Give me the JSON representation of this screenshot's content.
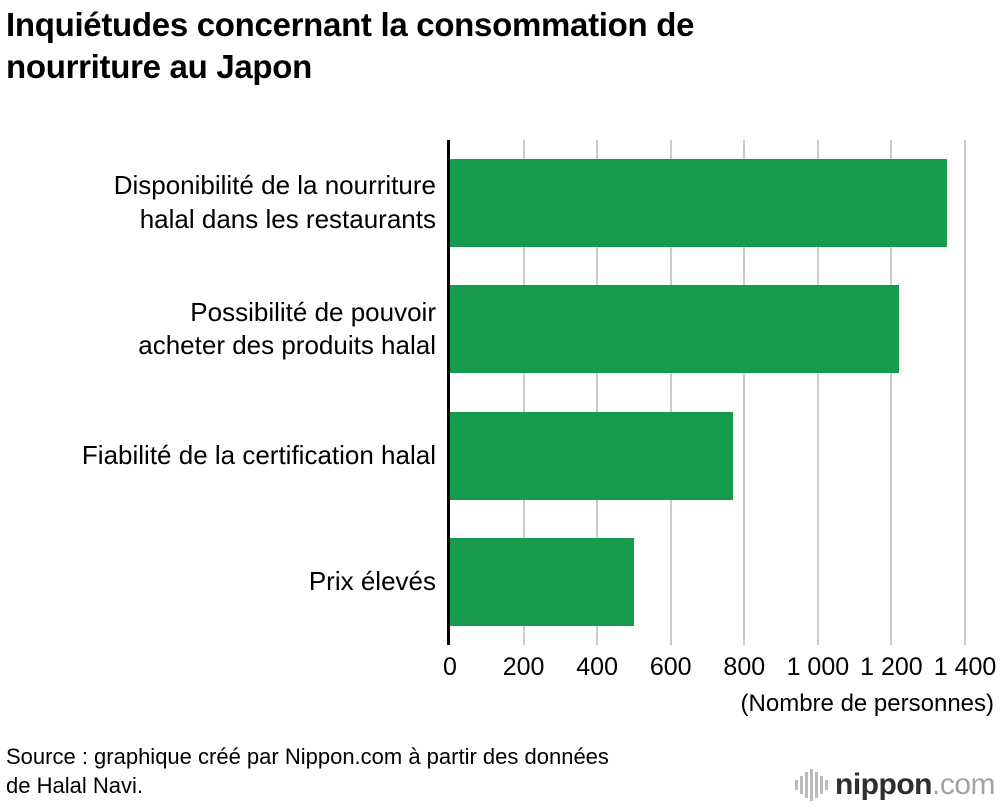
{
  "title_lines": [
    "Inquiétudes concernant la consommation de",
    "nourriture au Japon"
  ],
  "chart_data": {
    "type": "bar",
    "orientation": "horizontal",
    "title": "Inquiétudes concernant la consommation de nourriture au Japon",
    "categories": [
      "Disponibilité de la nourriture halal dans les restaurants",
      "Possibilité de pouvoir acheter des produits halal",
      "Fiabilité de la certification halal",
      "Prix élevés"
    ],
    "category_lines": [
      [
        "Disponibilité de la nourriture",
        "halal dans les restaurants"
      ],
      [
        "Possibilité de pouvoir",
        "acheter des produits halal"
      ],
      [
        "Fiabilité de la certification halal"
      ],
      [
        "Prix élevés"
      ]
    ],
    "values": [
      1350,
      1220,
      770,
      500
    ],
    "xlim": [
      0,
      1400
    ],
    "x_ticks": [
      0,
      200,
      400,
      600,
      800,
      1000,
      1200,
      1400
    ],
    "x_tick_labels": [
      "0",
      "200",
      "400",
      "600",
      "800",
      "1 000",
      "1 200",
      "1 400"
    ],
    "x_axis_note": "(Nombre de personnes)",
    "bar_color": "#169a4e",
    "gridline_color": "#cbcbcb",
    "grid": true,
    "legend": "none"
  },
  "footer": {
    "source_line1": "Source : graphique créé par Nippon.com à partir des données",
    "source_line2": "de Halal Navi.",
    "logo": {
      "name": "nippon",
      "domain": ".com"
    }
  }
}
